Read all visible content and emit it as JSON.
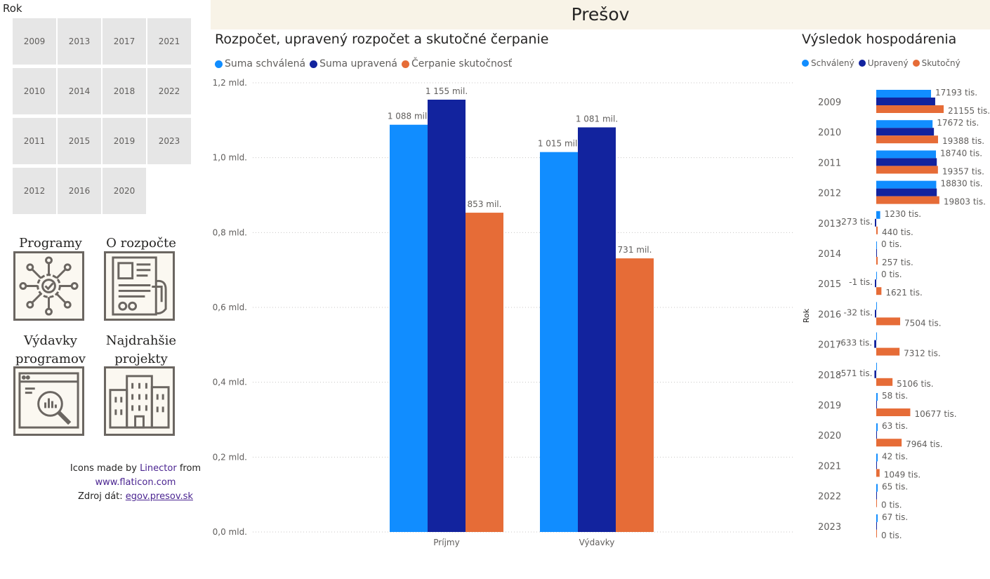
{
  "header": {
    "title": "Prešov"
  },
  "slicer": {
    "title": "Rok",
    "years": [
      "2009",
      "2010",
      "2011",
      "2012",
      "2013",
      "2014",
      "2015",
      "2016",
      "2017",
      "2018",
      "2019",
      "2020",
      "2021",
      "2022",
      "2023"
    ]
  },
  "nav": {
    "programy": "Programy",
    "o_rozpocte": "O rozpočte",
    "vydavky_line1": "Výdavky",
    "vydavky_line2": "programov",
    "najdrahsie_line1": "Najdrahšie",
    "najdrahsie_line2": "projekty"
  },
  "credits": {
    "line1_pre": "Icons made by ",
    "line1_link": "Linector",
    "line1_post": " from",
    "line2_link": "www.flaticon.com",
    "line3_pre": "Zdroj dát: ",
    "line3_link": "egov.presov.sk"
  },
  "colors": {
    "schvalena": "#118dff",
    "upravena": "#12239e",
    "skutocnost": "#e66c37"
  },
  "chart_data": [
    {
      "type": "bar",
      "title": "Rozpočet, upravený rozpočet a skutočné čerpanie",
      "categories": [
        "Príjmy",
        "Výdavky"
      ],
      "series": [
        {
          "name": "Suma schválená",
          "values": [
            1088,
            1015
          ],
          "labels": [
            "1 088 mil.",
            "1 015 mil."
          ]
        },
        {
          "name": "Suma upravená",
          "values": [
            1155,
            1081
          ],
          "labels": [
            "1 155 mil.",
            "1 081 mil."
          ]
        },
        {
          "name": "Čerpanie skutočnosť",
          "values": [
            853,
            731
          ],
          "labels": [
            "853 mil.",
            "731 mil."
          ]
        }
      ],
      "unit": "mil.",
      "ylim": [
        0,
        1200
      ],
      "yticks": [
        {
          "value": 0,
          "label": "0,0 mld."
        },
        {
          "value": 200,
          "label": "0,2 mld."
        },
        {
          "value": 400,
          "label": "0,4 mld."
        },
        {
          "value": 600,
          "label": "0,6 mld."
        },
        {
          "value": 800,
          "label": "0,8 mld."
        },
        {
          "value": 1000,
          "label": "1,0 mld."
        },
        {
          "value": 1200,
          "label": "1,2 mld."
        }
      ],
      "grid": true,
      "legend": "top-left"
    },
    {
      "type": "bar",
      "orientation": "horizontal",
      "title": "Výsledok hospodárenia",
      "ylabel": "Rok",
      "categories": [
        "2009",
        "2010",
        "2011",
        "2012",
        "2013",
        "2014",
        "2015",
        "2016",
        "2017",
        "2018",
        "2019",
        "2020",
        "2021",
        "2022",
        "2023"
      ],
      "series": [
        {
          "name": "Schválený",
          "values": [
            17193,
            17672,
            18740,
            18830,
            1230,
            0,
            0,
            0,
            0,
            0,
            58,
            63,
            42,
            65,
            67
          ],
          "labels": [
            "17193 tis.",
            "17672 tis.",
            "18740 tis.",
            "18830 tis.",
            "1230 tis.",
            "0 tis.",
            "0 tis.",
            "",
            "",
            "",
            "58 tis.",
            "63 tis.",
            "42 tis.",
            "65 tis.",
            "67 tis."
          ]
        },
        {
          "name": "Upravený",
          "values": [
            18500,
            18100,
            19000,
            19000,
            -273,
            0,
            -1,
            -32,
            -633,
            -571,
            0,
            0,
            0,
            0,
            0
          ],
          "labels": [
            "",
            "",
            "",
            "",
            "-273 tis.",
            "",
            "-1 tis.",
            "-32 tis.",
            "-633 tis.",
            "-571 tis.",
            "",
            "",
            "",
            "",
            ""
          ]
        },
        {
          "name": "Skutočný",
          "values": [
            21155,
            19388,
            19357,
            19803,
            440,
            257,
            1621,
            7504,
            7312,
            5106,
            10677,
            7964,
            1049,
            0,
            0
          ],
          "labels": [
            "21155 tis.",
            "19388 tis.",
            "19357 tis.",
            "19803 tis.",
            "440 tis.",
            "257 tis.",
            "1621 tis.",
            "7504 tis.",
            "7312 tis.",
            "5106 tis.",
            "10677 tis.",
            "7964 tis.",
            "1049 tis.",
            "0 tis.",
            "0 tis."
          ]
        }
      ],
      "unit": "tis.",
      "legend": "top-left"
    }
  ]
}
